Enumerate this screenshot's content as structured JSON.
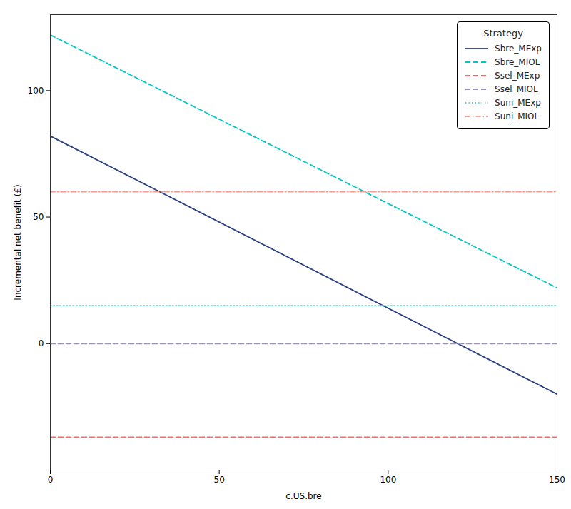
{
  "chart_data": {
    "type": "line",
    "xlabel": "c.US.bre",
    "ylabel": "Incremental net benefit (£)",
    "x": [
      0,
      150
    ],
    "xlim": [
      0,
      150
    ],
    "xticks": [
      0,
      50,
      100,
      150
    ],
    "ylim": [
      -50,
      130
    ],
    "yticks": [
      0,
      50,
      100
    ],
    "grid": false,
    "legend": "upper right",
    "legend_title": "Strategy",
    "series": [
      {
        "name": "Sbre_MExp",
        "color": "#2b4080",
        "line_style": "solid",
        "values": [
          82,
          -20
        ]
      },
      {
        "name": "Sbre_MIOL",
        "color": "#00c8c0",
        "line_style": "dashed",
        "values": [
          122,
          22
        ]
      },
      {
        "name": "Ssel_MExp",
        "color": "#e87070",
        "line_style": "dashed",
        "values": [
          -37,
          -37
        ]
      },
      {
        "name": "Ssel_MIOL",
        "color": "#a090c8",
        "line_style": "dashed",
        "values": [
          0,
          0
        ]
      },
      {
        "name": "Suni_MExp",
        "color": "#70d0d0",
        "line_style": "dotted",
        "values": [
          15,
          15
        ]
      },
      {
        "name": "Suni_MIOL",
        "color": "#f0a090",
        "line_style": "dashdot",
        "values": [
          60,
          60
        ]
      }
    ]
  }
}
